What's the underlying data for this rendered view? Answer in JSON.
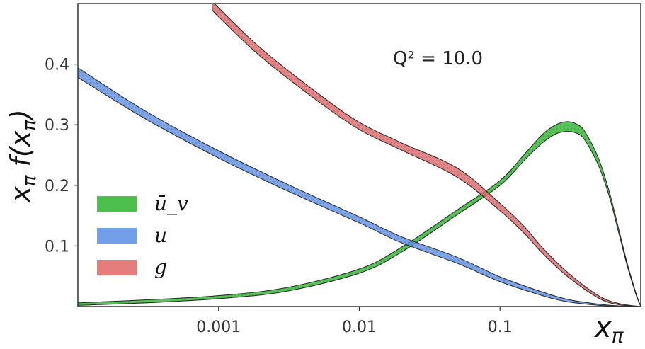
{
  "chart_data": {
    "type": "area",
    "xlabel": "x_π",
    "xscale": "log",
    "xlim": [
      0.0001,
      1.0
    ],
    "ylim": [
      0.0,
      0.5
    ],
    "grid": false,
    "legend_position": "center-left",
    "xticks": [
      {
        "value": 0.001,
        "label": "0.001"
      },
      {
        "value": 0.01,
        "label": "0.01"
      },
      {
        "value": 0.1,
        "label": "0.1"
      }
    ],
    "yticks": [
      {
        "value": 0.1,
        "label": "0.1"
      },
      {
        "value": 0.2,
        "label": "0.2"
      },
      {
        "value": 0.3,
        "label": "0.3"
      },
      {
        "value": 0.4,
        "label": "0.4"
      }
    ],
    "annotation": "Q² = 10.0",
    "series": [
      {
        "name": "ū_v",
        "color": "#2db52d",
        "x": [
          0.0001,
          0.0003,
          0.001,
          0.003,
          0.01,
          0.02,
          0.05,
          0.1,
          0.15,
          0.2,
          0.25,
          0.3,
          0.35,
          0.4,
          0.5,
          0.6,
          0.7,
          0.8,
          0.9,
          0.95,
          1.0
        ],
        "low": [
          0.002,
          0.006,
          0.013,
          0.025,
          0.055,
          0.09,
          0.152,
          0.2,
          0.242,
          0.27,
          0.285,
          0.289,
          0.286,
          0.275,
          0.233,
          0.18,
          0.12,
          0.068,
          0.028,
          0.012,
          0.0
        ],
        "high": [
          0.006,
          0.011,
          0.018,
          0.031,
          0.062,
          0.098,
          0.16,
          0.208,
          0.252,
          0.284,
          0.3,
          0.305,
          0.301,
          0.289,
          0.245,
          0.188,
          0.126,
          0.072,
          0.031,
          0.014,
          0.0
        ]
      },
      {
        "name": "u",
        "color": "#5b8ee6",
        "x": [
          0.0001,
          0.0003,
          0.001,
          0.003,
          0.01,
          0.02,
          0.05,
          0.1,
          0.2,
          0.3,
          0.5,
          0.7,
          1.0
        ],
        "low": [
          0.378,
          0.31,
          0.245,
          0.192,
          0.138,
          0.105,
          0.071,
          0.041,
          0.018,
          0.008,
          0.002,
          0.0,
          0.0
        ],
        "high": [
          0.394,
          0.323,
          0.257,
          0.203,
          0.148,
          0.115,
          0.081,
          0.049,
          0.024,
          0.012,
          0.004,
          0.001,
          0.0
        ]
      },
      {
        "name": "g",
        "color": "#e06666",
        "x": [
          0.0009,
          0.001,
          0.002,
          0.005,
          0.01,
          0.02,
          0.05,
          0.1,
          0.15,
          0.2,
          0.3,
          0.5,
          0.7,
          1.0
        ],
        "low": [
          0.49,
          0.478,
          0.412,
          0.34,
          0.292,
          0.258,
          0.213,
          0.158,
          0.12,
          0.088,
          0.05,
          0.014,
          0.003,
          0.0
        ],
        "high": [
          0.505,
          0.493,
          0.426,
          0.353,
          0.304,
          0.27,
          0.228,
          0.17,
          0.131,
          0.097,
          0.057,
          0.018,
          0.005,
          0.0
        ]
      }
    ]
  }
}
